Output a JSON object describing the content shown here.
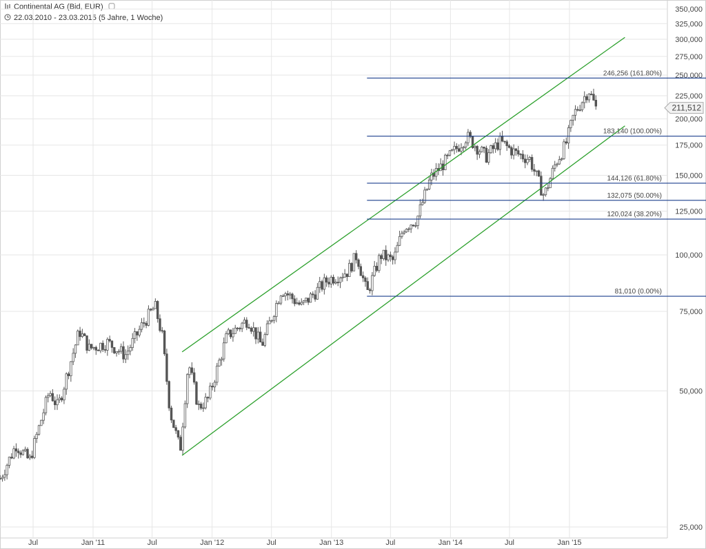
{
  "header": {
    "title": "Continental AG (Bid, EUR)",
    "period": "22.03.2010 - 23.03.2015 (5 Jahre, 1 Woche)"
  },
  "chart_data": {
    "type": "candlestick",
    "y_scale": "log",
    "ylim": [
      25000,
      365000
    ],
    "y_ticks": [
      {
        "value": 25000,
        "label": "25,000"
      },
      {
        "value": 50000,
        "label": "50,000"
      },
      {
        "value": 75000,
        "label": "75,000"
      },
      {
        "value": 100000,
        "label": "100,000"
      },
      {
        "value": 125000,
        "label": "125,000"
      },
      {
        "value": 150000,
        "label": "150,000"
      },
      {
        "value": 175000,
        "label": "175,000"
      },
      {
        "value": 200000,
        "label": "200,000"
      },
      {
        "value": 225000,
        "label": "225,000"
      },
      {
        "value": 250000,
        "label": "250,000"
      },
      {
        "value": 275000,
        "label": "275,000"
      },
      {
        "value": 300000,
        "label": "300,000"
      },
      {
        "value": 325000,
        "label": "325,000"
      },
      {
        "value": 350000,
        "label": "350,000"
      }
    ],
    "x_ticks": [
      {
        "date": "2010-07-01",
        "label": "Jul"
      },
      {
        "date": "2011-01-01",
        "label": "Jan '11"
      },
      {
        "date": "2011-07-01",
        "label": "Jul"
      },
      {
        "date": "2012-01-01",
        "label": "Jan '12"
      },
      {
        "date": "2012-07-01",
        "label": "Jul"
      },
      {
        "date": "2013-01-01",
        "label": "Jan '13"
      },
      {
        "date": "2013-07-01",
        "label": "Jul"
      },
      {
        "date": "2014-01-01",
        "label": "Jan '14"
      },
      {
        "date": "2014-07-01",
        "label": "Jul"
      },
      {
        "date": "2015-01-01",
        "label": "Jan '15"
      }
    ],
    "last_price": {
      "value": 211512,
      "label": "211,512"
    },
    "price_path": [
      [
        "2010-03-22",
        32000
      ],
      [
        "2010-05-10",
        38000
      ],
      [
        "2010-06-20",
        35000
      ],
      [
        "2010-08-20",
        50000
      ],
      [
        "2010-09-15",
        46000
      ],
      [
        "2010-11-20",
        68000
      ],
      [
        "2010-12-20",
        62000
      ],
      [
        "2011-02-15",
        64000
      ],
      [
        "2011-04-10",
        60000
      ],
      [
        "2011-06-01",
        70000
      ],
      [
        "2011-07-10",
        77000
      ],
      [
        "2011-08-01",
        66000
      ],
      [
        "2011-08-25",
        45000
      ],
      [
        "2011-09-25",
        37000
      ],
      [
        "2011-10-20",
        58000
      ],
      [
        "2011-11-20",
        46000
      ],
      [
        "2011-12-20",
        48000
      ],
      [
        "2012-02-15",
        66000
      ],
      [
        "2012-04-20",
        72000
      ],
      [
        "2012-06-01",
        63000
      ],
      [
        "2012-08-01",
        84000
      ],
      [
        "2012-10-01",
        77000
      ],
      [
        "2012-12-20",
        88000
      ],
      [
        "2013-02-20",
        92000
      ],
      [
        "2013-03-20",
        100000
      ],
      [
        "2013-04-20",
        82000
      ],
      [
        "2013-06-01",
        100000
      ],
      [
        "2013-07-10",
        97000
      ],
      [
        "2013-08-10",
        115000
      ],
      [
        "2013-09-20",
        120000
      ],
      [
        "2013-11-01",
        148000
      ],
      [
        "2013-12-20",
        162000
      ],
      [
        "2014-02-20",
        183000
      ],
      [
        "2014-04-20",
        165000
      ],
      [
        "2014-06-01",
        178000
      ],
      [
        "2014-07-20",
        168000
      ],
      [
        "2014-09-01",
        163000
      ],
      [
        "2014-10-15",
        135000
      ],
      [
        "2014-11-20",
        160000
      ],
      [
        "2014-12-20",
        175000
      ],
      [
        "2015-01-15",
        205000
      ],
      [
        "2015-03-01",
        232000
      ],
      [
        "2015-03-23",
        211512
      ]
    ],
    "channel_lines": [
      {
        "color": "#2ca02c",
        "points": [
          [
            "2011-10-01",
            61000
          ],
          [
            "2015-06-20",
            303000
          ]
        ]
      },
      {
        "color": "#2ca02c",
        "points": [
          [
            "2011-10-01",
            36000
          ],
          [
            "2015-06-20",
            193000
          ]
        ]
      }
    ],
    "fibonacci_levels": [
      {
        "value": 246256,
        "label": "246,256 (161.80%)"
      },
      {
        "value": 183140,
        "label": "183,140 (100.00%)"
      },
      {
        "value": 144126,
        "label": "144,126 (61.80%)"
      },
      {
        "value": 132075,
        "label": "132,075 (50.00%)"
      },
      {
        "value": 120024,
        "label": "120,024 (38.20%)"
      },
      {
        "value": 81010,
        "label": "81,010 (0.00%)"
      }
    ],
    "fib_start_date": "2013-04-20",
    "colors": {
      "fib": "#1a3e8c",
      "channel": "#2ca02c",
      "candle": "#555555",
      "grid": "#e6e6e6",
      "text": "#444444"
    }
  }
}
